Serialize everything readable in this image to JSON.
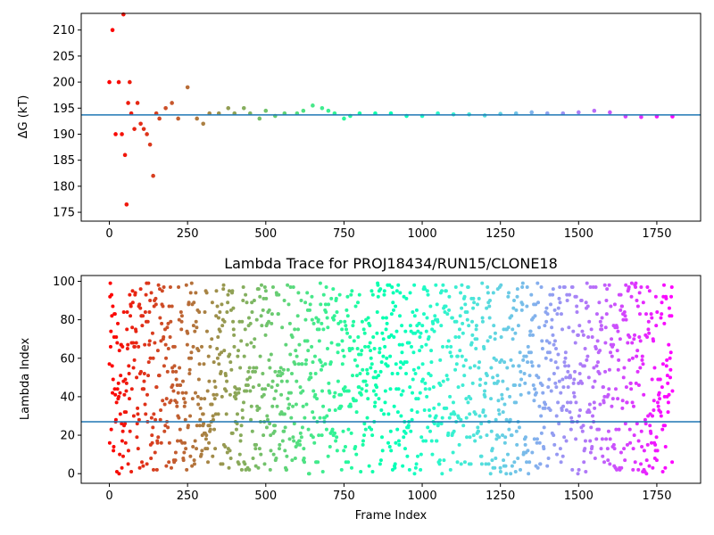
{
  "chart_data": [
    {
      "type": "scatter",
      "title": "",
      "xlabel": "",
      "ylabel": "ΔG (kT)",
      "xlim": [
        -90,
        1890
      ],
      "ylim": [
        173.3,
        213.2
      ],
      "xticks": [
        0,
        250,
        500,
        750,
        1000,
        1250,
        1500,
        1750
      ],
      "yticks": [
        175,
        180,
        185,
        190,
        195,
        200,
        205,
        210
      ],
      "hline": 193.7,
      "hline_color": "#1f77b4",
      "colormap": "rainbow (red at frame 0 to violet at frame 1800)",
      "series": [
        {
          "x": [
            0,
            10,
            20,
            30,
            40,
            45,
            50,
            55,
            60,
            65,
            70,
            80,
            90,
            100,
            110,
            120,
            130,
            140,
            150,
            160,
            180,
            200,
            220,
            250,
            280,
            300,
            320,
            350,
            380,
            400,
            430,
            450,
            480,
            500,
            530,
            560,
            600,
            620,
            650,
            680,
            700,
            720,
            750,
            770,
            800,
            850,
            900,
            950,
            1000,
            1050,
            1100,
            1150,
            1200,
            1250,
            1300,
            1350,
            1400,
            1450,
            1500,
            1550,
            1600,
            1650,
            1700,
            1750,
            1800
          ],
          "values": [
            200,
            210,
            190,
            200,
            190,
            213,
            186,
            176.5,
            196,
            200,
            194,
            191,
            196,
            192,
            191,
            190,
            188,
            182,
            194,
            193,
            195,
            196,
            193,
            199,
            193,
            192,
            194,
            194,
            195,
            194,
            195,
            194,
            193,
            194.5,
            193.5,
            194,
            194,
            194.5,
            195.5,
            195,
            194.5,
            194,
            193,
            193.5,
            194,
            194,
            194,
            193.5,
            193.5,
            194,
            193.8,
            193.8,
            193.6,
            193.9,
            194,
            194.2,
            194,
            194,
            194.2,
            194.5,
            194.2,
            193.4,
            193.3,
            193.4,
            193.4
          ]
        }
      ]
    },
    {
      "type": "scatter",
      "title": "Lambda Trace for PROJ18434/RUN15/CLONE18",
      "xlabel": "Frame Index",
      "ylabel": "Lambda Index",
      "xlim": [
        -90,
        1890
      ],
      "ylim": [
        -5,
        103
      ],
      "xticks": [
        0,
        250,
        500,
        750,
        1000,
        1250,
        1500,
        1750
      ],
      "yticks": [
        0,
        20,
        40,
        60,
        80,
        100
      ],
      "hline": 27,
      "hline_color": "#1f77b4",
      "colormap": "rainbow (red at frame 0 to violet at frame 1800)",
      "points_sample": {
        "description": "approx. 1800 points uniformly scattered over lambda 0–99 for frames 0–1800",
        "frame_range": [
          0,
          1800
        ],
        "lambda_range": [
          0,
          99
        ]
      }
    }
  ]
}
